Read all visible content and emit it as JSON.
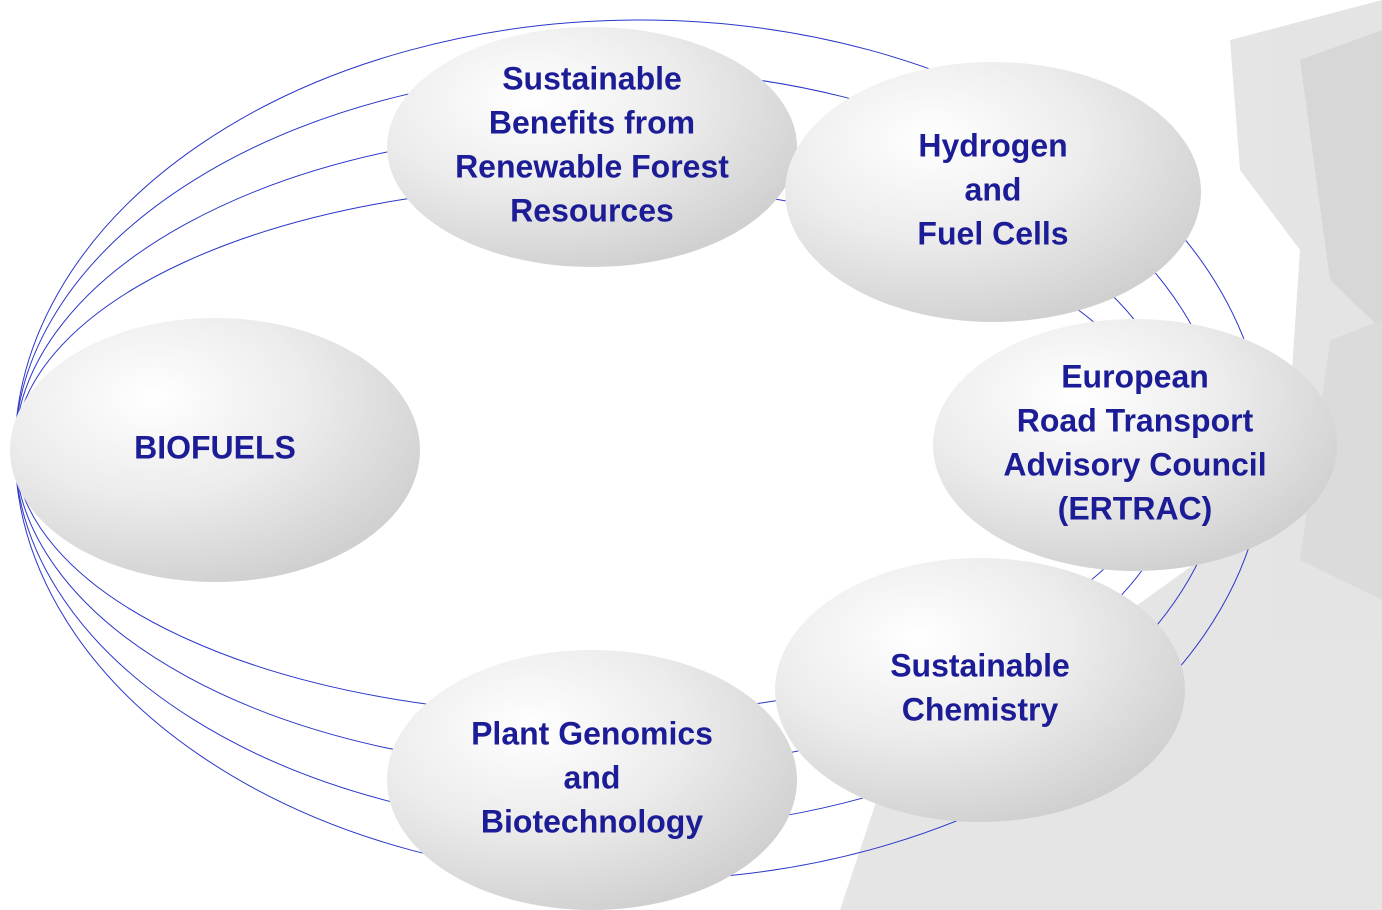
{
  "nodes": [
    {
      "lines": [
        "Sustainable",
        "Benefits from",
        "Renewable Forest",
        "Resources"
      ]
    },
    {
      "lines": [
        "Hydrogen",
        "and",
        "Fuel Cells"
      ]
    },
    {
      "lines": [
        "European",
        "Road Transport",
        "Advisory Council",
        "(ERTRAC)"
      ]
    },
    {
      "lines": [
        "Sustainable",
        "Chemistry"
      ]
    },
    {
      "lines": [
        "Plant Genomics",
        "and",
        "Biotechnology"
      ]
    },
    {
      "lines": [
        "BIOFUELS"
      ]
    }
  ]
}
